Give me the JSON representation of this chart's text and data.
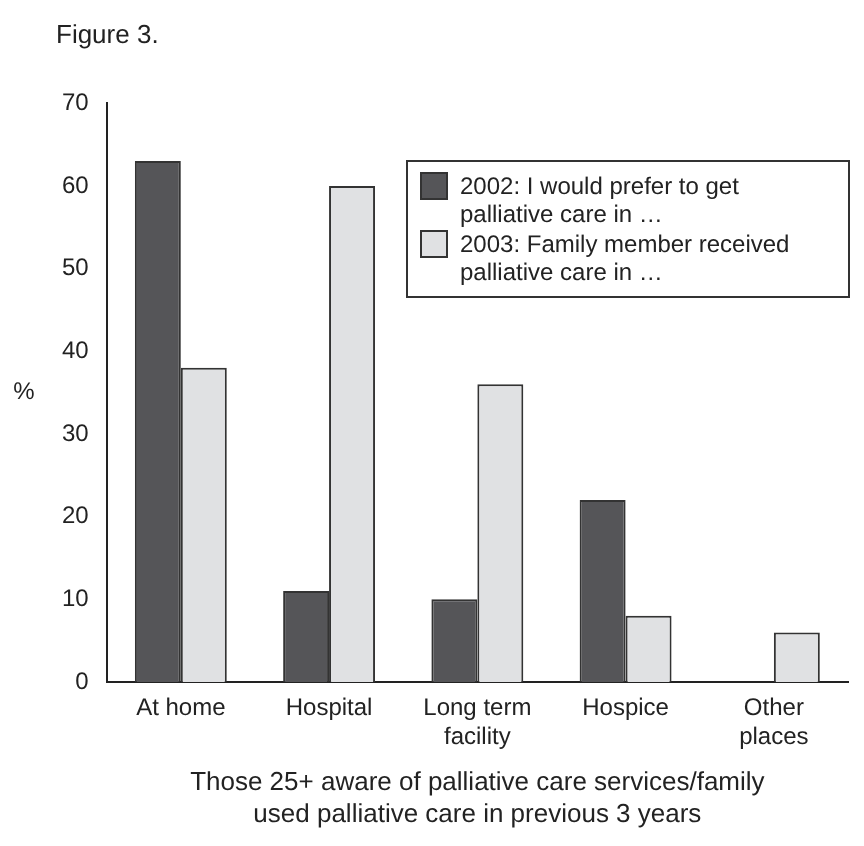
{
  "chart_data": {
    "type": "bar",
    "title": "Figure 3.",
    "xlabel": "Those 25+ aware of palliative care services/family used palliative care in previous 3 years",
    "ylabel": "%",
    "categories": [
      "At home",
      "Hospital",
      "Long term facility",
      "Hospice",
      "Other places"
    ],
    "series": [
      {
        "name": "2002: I would prefer to get palliative care in …",
        "color": "#555558",
        "values": [
          63,
          11,
          10,
          22,
          null
        ]
      },
      {
        "name": "2003: Family member received palliative care in …",
        "color": "#e0e1e3",
        "values": [
          38,
          60,
          36,
          8,
          6
        ]
      }
    ],
    "ylim": [
      0,
      70
    ],
    "yticks": [
      0,
      10,
      20,
      30,
      40,
      50,
      60,
      70
    ],
    "grid": false,
    "legend": "top right"
  }
}
